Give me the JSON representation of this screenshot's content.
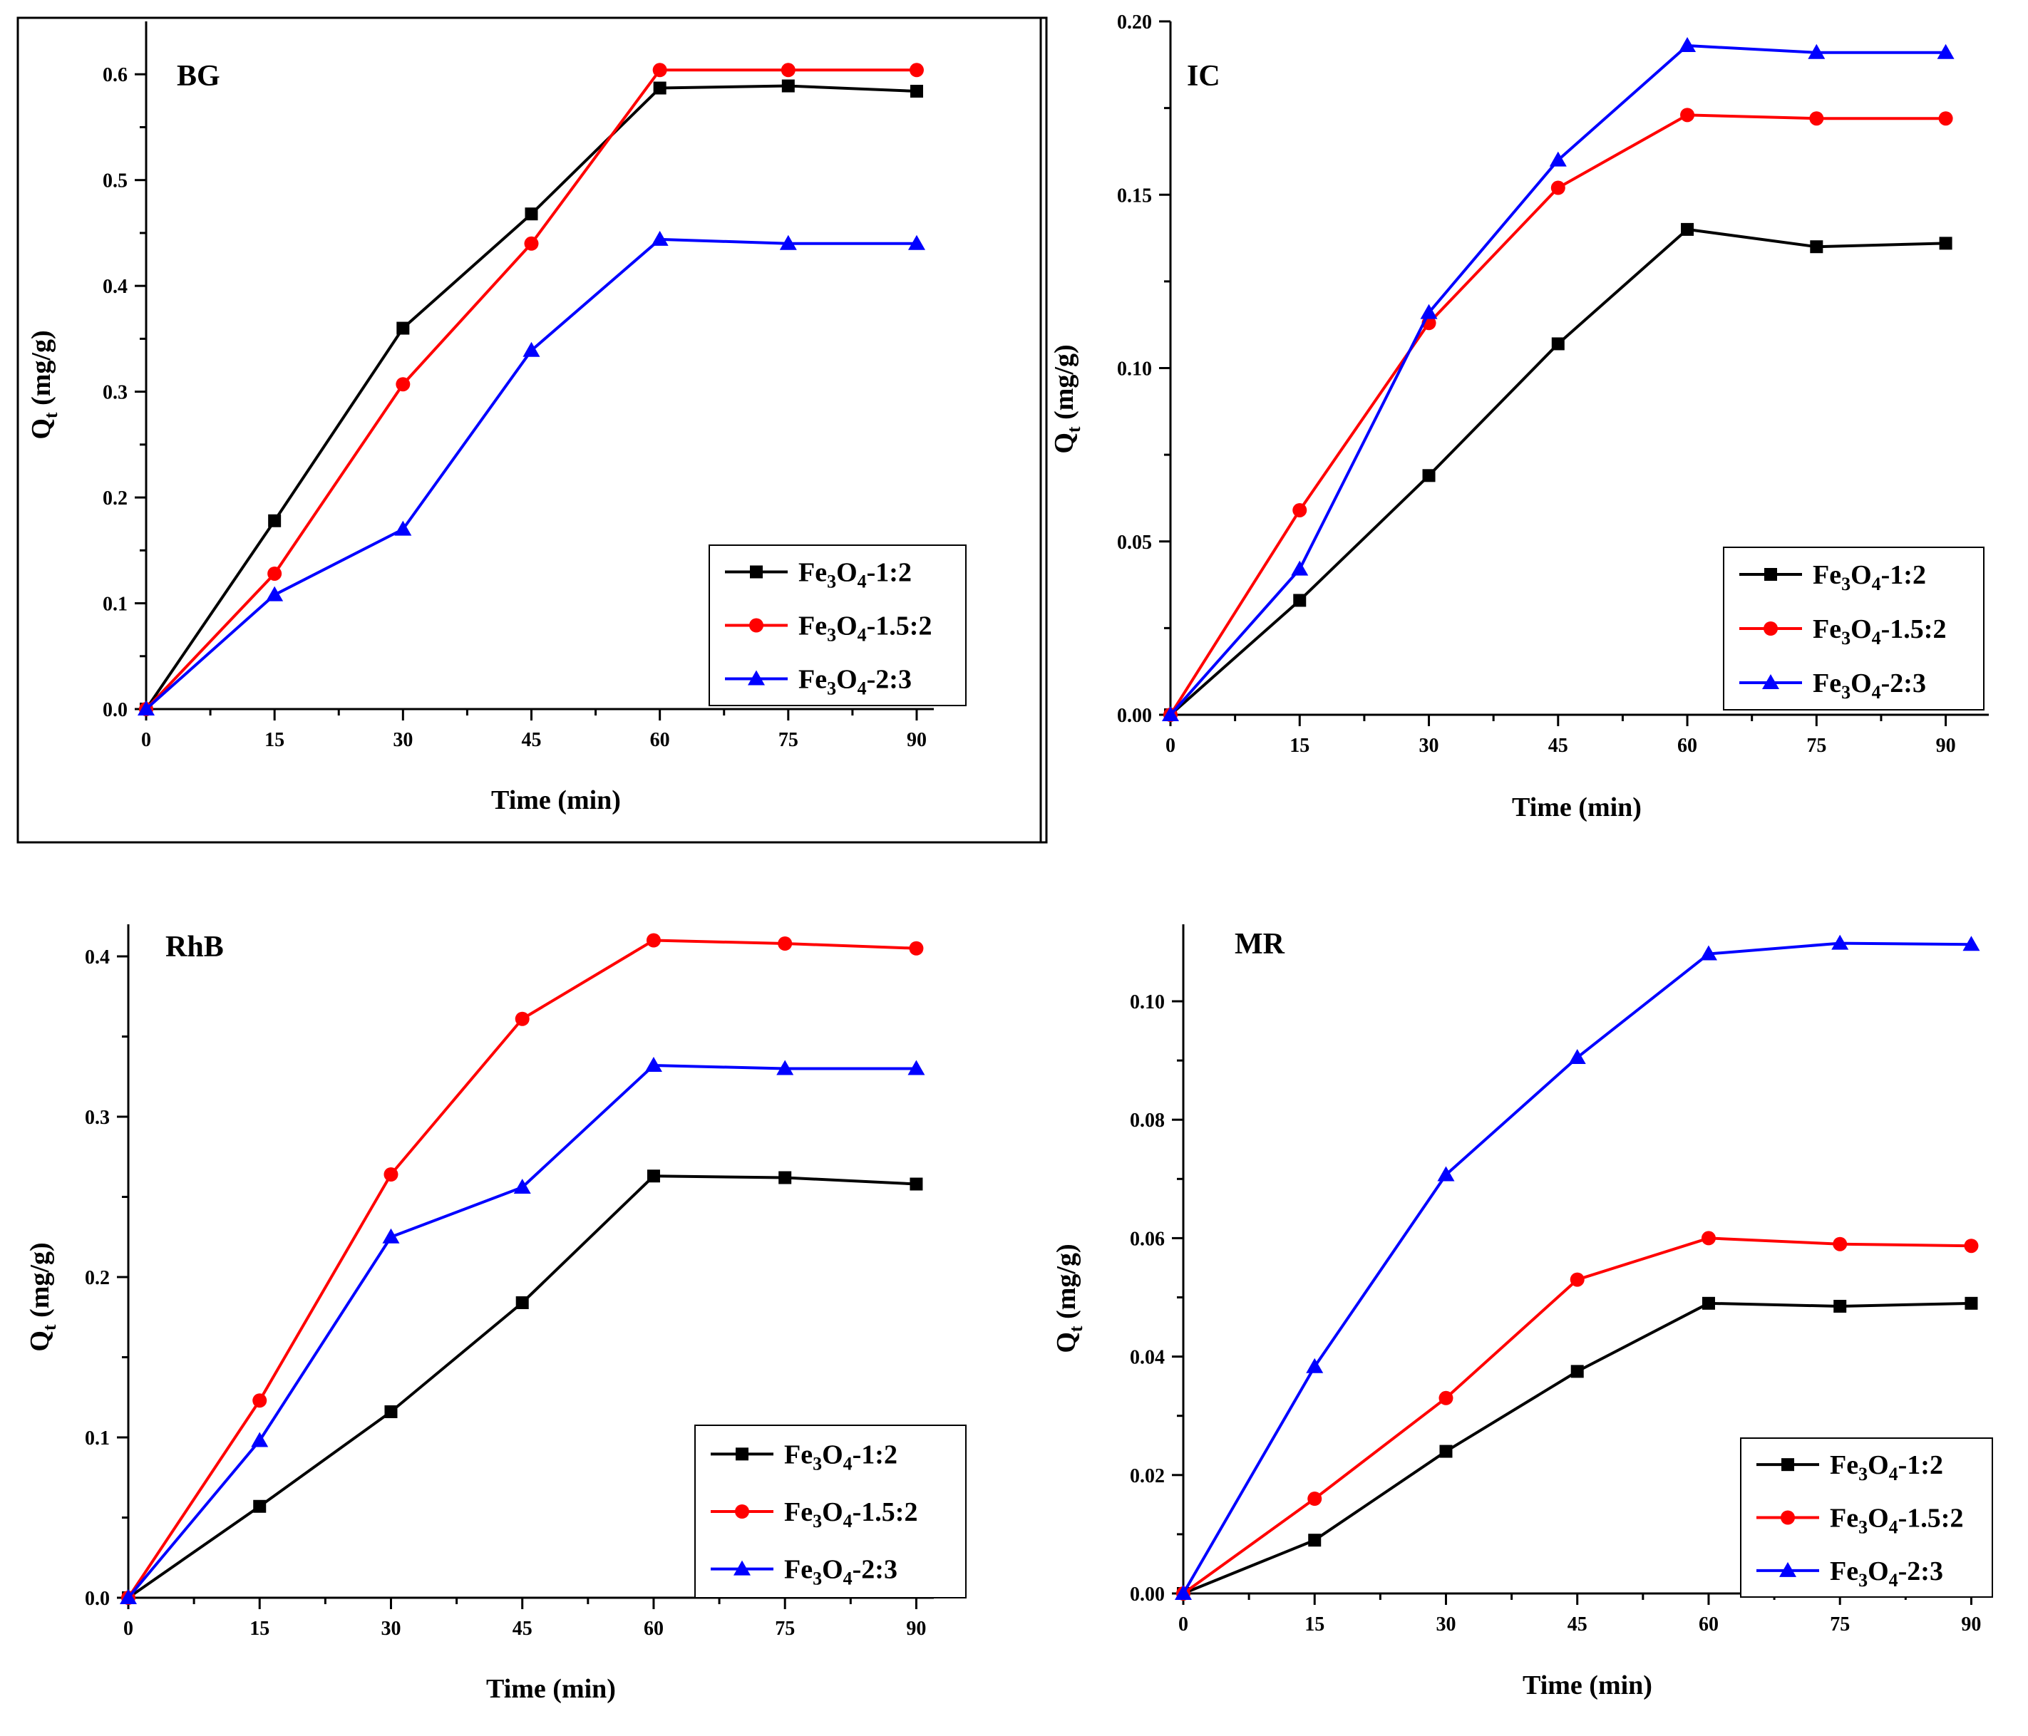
{
  "chart_data": [
    {
      "type": "line",
      "title": "BG",
      "xlabel": "Time (min)",
      "ylabel_main": "Q",
      "ylabel_sub": "t",
      "ylabel_unit": " (mg/g)",
      "x": [
        0,
        15,
        30,
        45,
        60,
        75,
        90
      ],
      "xlim": [
        0,
        92
      ],
      "ylim": [
        0,
        0.65
      ],
      "xticks": [
        "0",
        "15",
        "30",
        "45",
        "60",
        "75",
        "90"
      ],
      "yticks": [
        "0.0",
        "0.1",
        "0.2",
        "0.3",
        "0.4",
        "0.5",
        "0.6"
      ],
      "series": [
        {
          "name": "Fe3O4-1:2",
          "label": {
            "a": "Fe",
            "b": "3",
            "c": "O",
            "d": "4",
            "e": "-1:2"
          },
          "color": "#000000",
          "marker": "square",
          "values": [
            0,
            0.178,
            0.36,
            0.468,
            0.587,
            0.589,
            0.584
          ]
        },
        {
          "name": "Fe3O4-1.5:2",
          "label": {
            "a": "Fe",
            "b": "3",
            "c": "O",
            "d": "4",
            "e": "-1.5:2"
          },
          "color": "#ff0000",
          "marker": "circle",
          "values": [
            0,
            0.128,
            0.307,
            0.44,
            0.604,
            0.604,
            0.604
          ]
        },
        {
          "name": "Fe3O4-2:3",
          "label": {
            "a": "Fe",
            "b": "3",
            "c": "O",
            "d": "4",
            "e": "-2:3"
          },
          "color": "#0000ff",
          "marker": "triangle",
          "values": [
            0,
            0.108,
            0.17,
            0.339,
            0.444,
            0.44,
            0.44
          ]
        }
      ]
    },
    {
      "type": "line",
      "title": "IC",
      "xlabel": "Time (min)",
      "ylabel_main": "Q",
      "ylabel_sub": "t",
      "ylabel_unit": " (mg/g)",
      "x": [
        0,
        15,
        30,
        45,
        60,
        75,
        90
      ],
      "xlim": [
        0,
        95
      ],
      "ylim": [
        0,
        0.2
      ],
      "xticks": [
        "0",
        "15",
        "30",
        "45",
        "60",
        "75",
        "90"
      ],
      "yticks": [
        "0.00",
        "0.05",
        "0.10",
        "0.15",
        "0.20"
      ],
      "series": [
        {
          "name": "Fe3O4-1:2",
          "label": {
            "a": "Fe",
            "b": "3",
            "c": "O",
            "d": "4",
            "e": "-1:2"
          },
          "color": "#000000",
          "marker": "square",
          "values": [
            0,
            0.033,
            0.069,
            0.107,
            0.14,
            0.135,
            0.136
          ]
        },
        {
          "name": "Fe3O4-1.5:2",
          "label": {
            "a": "Fe",
            "b": "3",
            "c": "O",
            "d": "4",
            "e": "-1.5:2"
          },
          "color": "#ff0000",
          "marker": "circle",
          "values": [
            0,
            0.059,
            0.113,
            0.152,
            0.173,
            0.172,
            0.172
          ]
        },
        {
          "name": "Fe3O4-2:3",
          "label": {
            "a": "Fe",
            "b": "3",
            "c": "O",
            "d": "4",
            "e": "-2:3"
          },
          "color": "#0000ff",
          "marker": "triangle",
          "values": [
            0,
            0.042,
            0.116,
            0.16,
            0.193,
            0.191,
            0.191
          ]
        }
      ]
    },
    {
      "type": "line",
      "title": "RhB",
      "xlabel": "Time (min)",
      "ylabel_main": "Q",
      "ylabel_sub": "t",
      "ylabel_unit": " (mg/g)",
      "x": [
        0,
        15,
        30,
        45,
        60,
        75,
        90
      ],
      "xlim": [
        0,
        92
      ],
      "ylim": [
        0,
        0.42
      ],
      "xticks": [
        "0",
        "15",
        "30",
        "45",
        "60",
        "75",
        "90"
      ],
      "yticks": [
        "0.0",
        "0.1",
        "0.2",
        "0.3",
        "0.4"
      ],
      "series": [
        {
          "name": "Fe3O4-1:2",
          "label": {
            "a": "Fe",
            "b": "3",
            "c": "O",
            "d": "4",
            "e": "-1:2"
          },
          "color": "#000000",
          "marker": "square",
          "values": [
            0,
            0.057,
            0.116,
            0.184,
            0.263,
            0.262,
            0.258
          ]
        },
        {
          "name": "Fe3O4-1.5:2",
          "label": {
            "a": "Fe",
            "b": "3",
            "c": "O",
            "d": "4",
            "e": "-1.5:2"
          },
          "color": "#ff0000",
          "marker": "circle",
          "values": [
            0,
            0.123,
            0.264,
            0.361,
            0.41,
            0.408,
            0.405
          ]
        },
        {
          "name": "Fe3O4-2:3",
          "label": {
            "a": "Fe",
            "b": "3",
            "c": "O",
            "d": "4",
            "e": "-2:3"
          },
          "color": "#0000ff",
          "marker": "triangle",
          "values": [
            0,
            0.098,
            0.225,
            0.256,
            0.332,
            0.33,
            0.33
          ]
        }
      ]
    },
    {
      "type": "line",
      "title": "MR",
      "xlabel": "Time (min)",
      "ylabel_main": "Q",
      "ylabel_sub": "t",
      "ylabel_unit": " (mg/g)",
      "x": [
        0,
        15,
        30,
        45,
        60,
        75,
        90
      ],
      "xlim": [
        0,
        92
      ],
      "ylim": [
        0,
        0.113
      ],
      "xticks": [
        "0",
        "15",
        "30",
        "45",
        "60",
        "75",
        "90"
      ],
      "yticks": [
        "0.00",
        "0.02",
        "0.04",
        "0.06",
        "0.08",
        "0.10"
      ],
      "series": [
        {
          "name": "Fe3O4-1:2",
          "label": {
            "a": "Fe",
            "b": "3",
            "c": "O",
            "d": "4",
            "e": "-1:2"
          },
          "color": "#000000",
          "marker": "square",
          "values": [
            0,
            0.009,
            0.024,
            0.0375,
            0.049,
            0.0485,
            0.049
          ]
        },
        {
          "name": "Fe3O4-1.5:2",
          "label": {
            "a": "Fe",
            "b": "3",
            "c": "O",
            "d": "4",
            "e": "-1.5:2"
          },
          "color": "#ff0000",
          "marker": "circle",
          "values": [
            0,
            0.016,
            0.033,
            0.053,
            0.06,
            0.059,
            0.0587
          ]
        },
        {
          "name": "Fe3O4-2:3",
          "label": {
            "a": "Fe",
            "b": "3",
            "c": "O",
            "d": "4",
            "e": "-2:3"
          },
          "color": "#0000ff",
          "marker": "triangle",
          "values": [
            0,
            0.0383,
            0.0707,
            0.0905,
            0.108,
            0.1098,
            0.1096
          ]
        }
      ]
    }
  ]
}
